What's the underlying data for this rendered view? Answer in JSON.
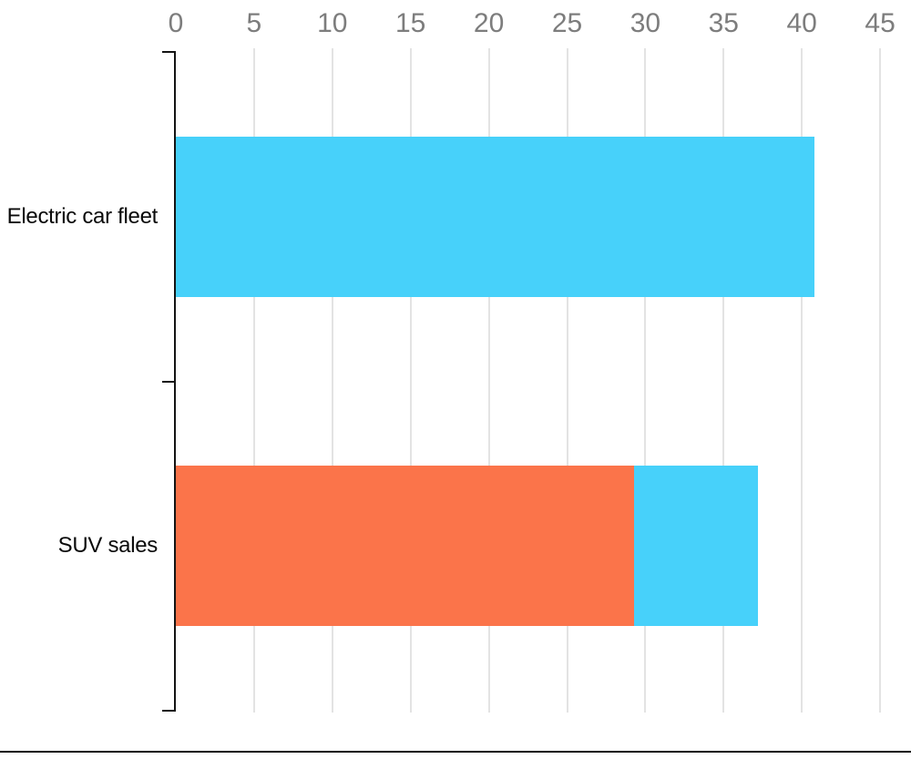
{
  "page": {
    "background": "#ffffff"
  },
  "chart_data": {
    "type": "bar",
    "orientation": "horizontal",
    "stacked": true,
    "title": "",
    "xlabel": "",
    "ylabel": "",
    "legend": null,
    "x_axis": {
      "position": "top",
      "range": [
        0,
        45
      ],
      "ticks": [
        0,
        5,
        10,
        15,
        20,
        25,
        30,
        35,
        40,
        45
      ],
      "grid": true
    },
    "categories": [
      "Electric car fleet",
      "SUV sales"
    ],
    "bars": [
      {
        "category": "Electric car fleet",
        "total": 40.8,
        "segments": [
          {
            "name": "electric-cars",
            "color": "#47d1fa",
            "value": 40.8
          }
        ]
      },
      {
        "category": "SUV sales",
        "total": 37.2,
        "segments": [
          {
            "name": "suv-sales",
            "color": "#fb744a",
            "value": 29.3
          },
          {
            "name": "electric-cars",
            "color": "#47d1fa",
            "value": 7.9
          }
        ]
      }
    ],
    "style": {
      "bar_color_cyan": "#47d1fa",
      "bar_color_orange": "#fb744a",
      "grid_color": "#e3e3e3",
      "axis_color": "#141414",
      "tick_label_color": "#7d7d7d",
      "category_label_color": "#0a0a0a",
      "divider_color": "#0c0c0c"
    }
  }
}
